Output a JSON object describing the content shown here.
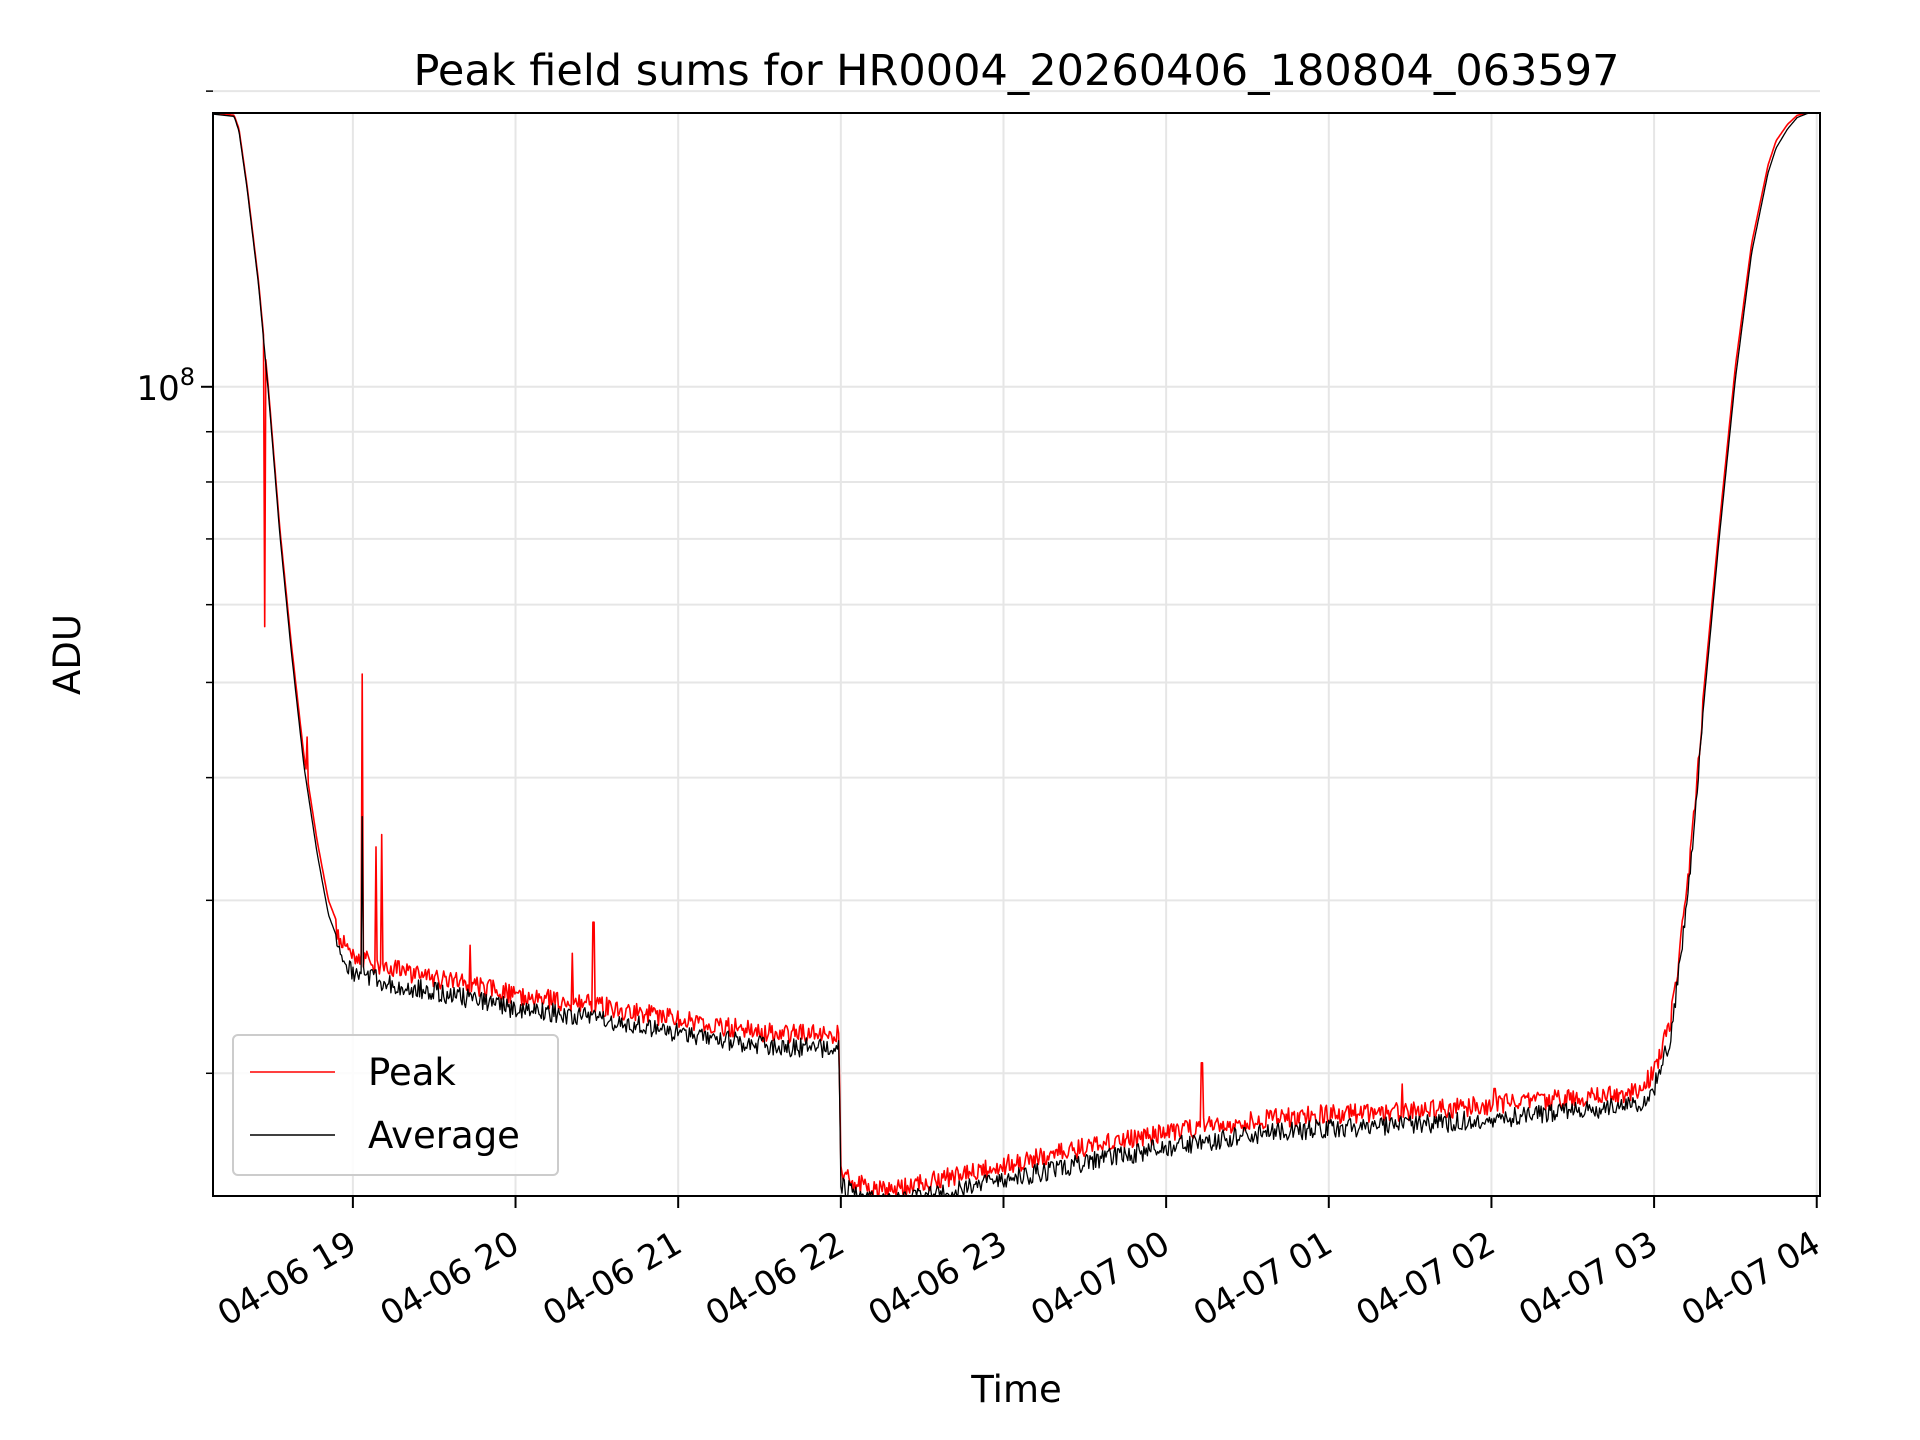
{
  "chart_data": {
    "type": "line",
    "title": "Peak field sums for HR0004_20260406_180804_063597",
    "xlabel": "Time",
    "ylabel": "ADU",
    "yscale": "log",
    "ylim": [
      15000000,
      190000000
    ],
    "y_major_tick": {
      "value": 100000000,
      "base": "10",
      "exp": "8"
    },
    "y_minor_ticks": [
      20000000,
      30000000,
      40000000,
      50000000,
      60000000,
      70000000,
      80000000,
      90000000,
      200000000
    ],
    "x_unit": "hours since 04-06 18:00",
    "xlim": [
      0.14,
      10.02
    ],
    "x_ticks": [
      {
        "x": 1,
        "label": "04-06 19"
      },
      {
        "x": 2,
        "label": "04-06 20"
      },
      {
        "x": 3,
        "label": "04-06 21"
      },
      {
        "x": 4,
        "label": "04-06 22"
      },
      {
        "x": 5,
        "label": "04-06 23"
      },
      {
        "x": 6,
        "label": "04-07 00"
      },
      {
        "x": 7,
        "label": "04-07 01"
      },
      {
        "x": 8,
        "label": "04-07 02"
      },
      {
        "x": 9,
        "label": "04-07 03"
      },
      {
        "x": 10,
        "label": "04-07 04"
      }
    ],
    "grid": true,
    "legend_position": "lower-left",
    "series": [
      {
        "name": "Peak",
        "color": "#ff0000",
        "x": [
          0.14,
          0.27,
          0.3,
          0.35,
          0.42,
          0.48,
          0.55,
          0.62,
          0.7,
          0.78,
          0.85,
          0.92,
          1.0,
          1.2,
          1.5,
          2.0,
          2.5,
          3.0,
          3.3,
          3.55,
          3.99,
          4.0,
          4.1,
          4.3,
          4.5,
          5.0,
          5.5,
          6.0,
          6.5,
          7.0,
          7.5,
          8.0,
          8.5,
          8.9,
          9.0,
          9.1,
          9.2,
          9.3,
          9.4,
          9.5,
          9.6,
          9.7,
          9.75,
          9.82,
          9.88,
          9.95,
          10.02
        ],
        "values": [
          190000000,
          189000000,
          183000000,
          160000000,
          128000000,
          100000000,
          72000000,
          55000000,
          42000000,
          34500000,
          30000000,
          28000000,
          27000000,
          26200000,
          25600000,
          24600000,
          24000000,
          23200000,
          22800000,
          22500000,
          22400000,
          16100000,
          15800000,
          15500000,
          15800000,
          16500000,
          17200000,
          17800000,
          18300000,
          18600000,
          18700000,
          19000000,
          19300000,
          19600000,
          20500000,
          23000000,
          31000000,
          48000000,
          72000000,
          105000000,
          140000000,
          168000000,
          178000000,
          185000000,
          189000000,
          190000000,
          190000000
        ],
        "spikes": [
          {
            "x": 0.46,
            "value": 57000000
          },
          {
            "x": 0.72,
            "value": 44000000
          },
          {
            "x": 1.06,
            "value": 51000000
          },
          {
            "x": 1.14,
            "value": 34000000
          },
          {
            "x": 1.18,
            "value": 35000000
          },
          {
            "x": 1.72,
            "value": 27000000
          },
          {
            "x": 2.35,
            "value": 26500000
          },
          {
            "x": 2.48,
            "value": 28500000
          },
          {
            "x": 6.22,
            "value": 20500000
          },
          {
            "x": 7.45,
            "value": 19500000
          },
          {
            "x": 8.02,
            "value": 19300000
          }
        ]
      },
      {
        "name": "Average",
        "color": "#000000",
        "x": [
          0.14,
          0.27,
          0.3,
          0.35,
          0.42,
          0.48,
          0.55,
          0.62,
          0.7,
          0.78,
          0.85,
          0.92,
          1.0,
          1.2,
          1.5,
          2.0,
          2.5,
          3.0,
          3.3,
          3.55,
          3.99,
          4.0,
          4.1,
          4.3,
          4.5,
          5.0,
          5.5,
          6.0,
          6.5,
          7.0,
          7.5,
          8.0,
          8.5,
          8.9,
          9.0,
          9.1,
          9.2,
          9.3,
          9.4,
          9.5,
          9.6,
          9.7,
          9.75,
          9.82,
          9.88,
          9.95,
          10.02
        ],
        "values": [
          189500000,
          188500000,
          182000000,
          159000000,
          127000000,
          99000000,
          71000000,
          54000000,
          41000000,
          33500000,
          29000000,
          27000000,
          26000000,
          25300000,
          24800000,
          23800000,
          23300000,
          22500000,
          22100000,
          21800000,
          21700000,
          15700000,
          15400000,
          15100000,
          15300000,
          15900000,
          16600000,
          17200000,
          17700000,
          18000000,
          18100000,
          18400000,
          18700000,
          19000000,
          19800000,
          22200000,
          30000000,
          46500000,
          70000000,
          102000000,
          137000000,
          165000000,
          175000000,
          183000000,
          188000000,
          190000000,
          190000000
        ],
        "spikes": [
          {
            "x": 1.06,
            "value": 36500000
          }
        ]
      }
    ]
  }
}
